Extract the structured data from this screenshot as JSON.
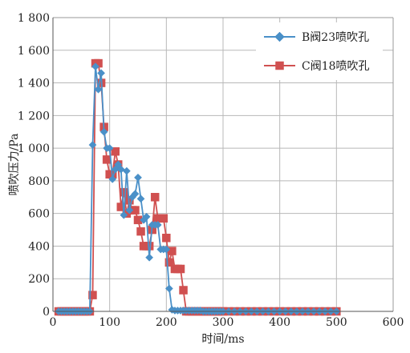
{
  "chart_data": {
    "type": "line",
    "title": "",
    "xlabel": "时间/ms",
    "ylabel": "喷吹压力/Pa",
    "xlim": [
      0,
      600
    ],
    "ylim": [
      0,
      1800
    ],
    "xticks": [
      "0",
      "100",
      "200",
      "300",
      "400",
      "500",
      "600"
    ],
    "yticks": [
      "0",
      "200",
      "400",
      "600",
      "800",
      "1 000",
      "1 200",
      "1 400",
      "1 600",
      "1 800"
    ],
    "grid": true,
    "legend_position": "top-right",
    "series": [
      {
        "name": "B阀23喷吹孔",
        "marker": "diamond",
        "color": "#4a90c8",
        "x": [
          10,
          15,
          20,
          25,
          30,
          35,
          40,
          45,
          50,
          55,
          60,
          65,
          70,
          75,
          80,
          85,
          90,
          95,
          100,
          105,
          110,
          115,
          120,
          125,
          130,
          135,
          140,
          145,
          150,
          155,
          160,
          165,
          170,
          175,
          180,
          185,
          190,
          195,
          200,
          205,
          210,
          215,
          220,
          225,
          230,
          235,
          240,
          245,
          250,
          255,
          260,
          265,
          270,
          275,
          280,
          285,
          290,
          295,
          300,
          310,
          320,
          330,
          340,
          350,
          360,
          370,
          380,
          390,
          400,
          410,
          420,
          430,
          440,
          450,
          460,
          470,
          480,
          490,
          500
        ],
        "y": [
          0,
          0,
          0,
          0,
          0,
          0,
          0,
          0,
          0,
          0,
          0,
          0,
          1020,
          1500,
          1360,
          1460,
          1100,
          1000,
          1000,
          810,
          870,
          900,
          870,
          590,
          860,
          620,
          700,
          720,
          820,
          690,
          560,
          580,
          330,
          530,
          530,
          530,
          380,
          380,
          380,
          140,
          10,
          5,
          5,
          5,
          5,
          5,
          5,
          5,
          5,
          5,
          5,
          0,
          0,
          0,
          0,
          0,
          0,
          0,
          0,
          0,
          0,
          0,
          0,
          0,
          0,
          0,
          0,
          0,
          0,
          0,
          0,
          0,
          0,
          0,
          0,
          0,
          0,
          0,
          0
        ]
      },
      {
        "name": "C阀18喷吹孔",
        "marker": "square",
        "color": "#d05050",
        "x": [
          10,
          15,
          20,
          25,
          30,
          35,
          40,
          45,
          50,
          55,
          60,
          65,
          70,
          75,
          80,
          85,
          90,
          95,
          100,
          105,
          110,
          115,
          120,
          125,
          130,
          135,
          140,
          145,
          150,
          155,
          160,
          165,
          170,
          175,
          180,
          185,
          190,
          195,
          200,
          205,
          210,
          215,
          220,
          225,
          230,
          235,
          240,
          245,
          250,
          255,
          260,
          265,
          270,
          275,
          280,
          285,
          290,
          295,
          300,
          310,
          320,
          330,
          340,
          350,
          360,
          370,
          380,
          390,
          400,
          410,
          420,
          430,
          440,
          450,
          460,
          470,
          480,
          490,
          500
        ],
        "y": [
          0,
          0,
          0,
          0,
          0,
          0,
          0,
          0,
          0,
          0,
          0,
          0,
          100,
          1520,
          1520,
          1400,
          1130,
          930,
          840,
          840,
          980,
          900,
          640,
          730,
          600,
          680,
          620,
          620,
          560,
          490,
          400,
          400,
          400,
          500,
          700,
          570,
          570,
          570,
          450,
          300,
          370,
          260,
          260,
          260,
          130,
          0,
          0,
          0,
          0,
          0,
          0,
          0,
          0,
          0,
          0,
          0,
          0,
          0,
          0,
          0,
          0,
          0,
          0,
          0,
          0,
          0,
          0,
          0,
          0,
          0,
          0,
          0,
          0,
          0,
          0,
          0,
          0,
          0,
          0
        ]
      }
    ]
  }
}
